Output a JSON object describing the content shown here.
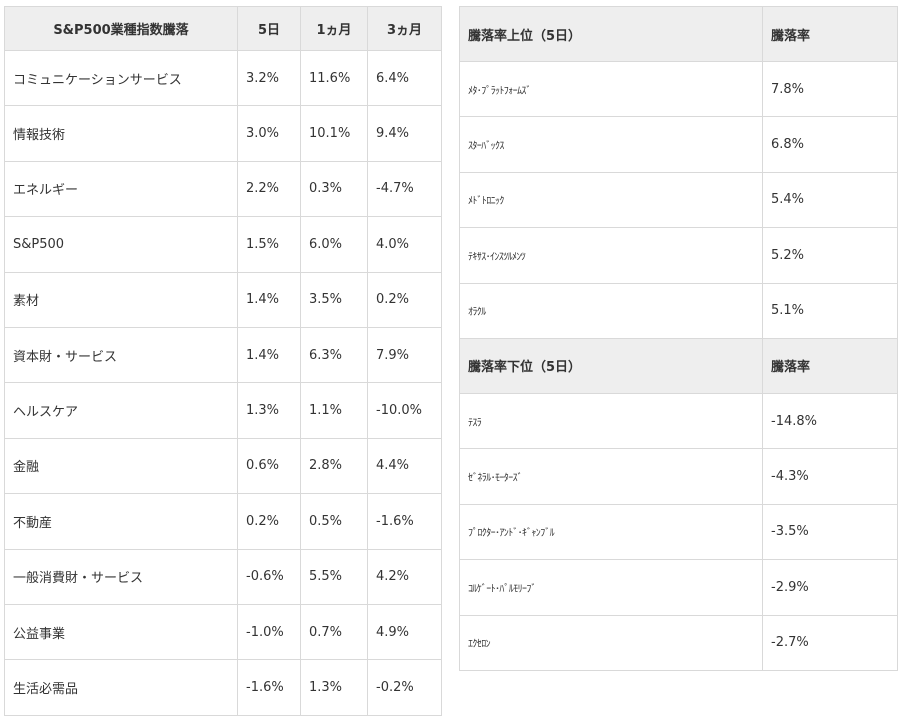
{
  "sector_table": {
    "headers": [
      "S&P500業種指数騰落",
      "5日",
      "1ヵ月",
      "3ヵ月"
    ],
    "rows": [
      [
        "コミュニケーションサービス",
        "3.2%",
        "11.6%",
        "6.4%"
      ],
      [
        "情報技術",
        "3.0%",
        "10.1%",
        "9.4%"
      ],
      [
        "エネルギー",
        "2.2%",
        "0.3%",
        "-4.7%"
      ],
      [
        "S&P500",
        "1.5%",
        "6.0%",
        "4.0%"
      ],
      [
        "素材",
        "1.4%",
        "3.5%",
        "0.2%"
      ],
      [
        "資本財・サービス",
        "1.4%",
        "6.3%",
        "7.9%"
      ],
      [
        "ヘルスケア",
        "1.3%",
        "1.1%",
        "-10.0%"
      ],
      [
        "金融",
        "0.6%",
        "2.8%",
        "4.4%"
      ],
      [
        "不動産",
        "0.2%",
        "0.5%",
        "-1.6%"
      ],
      [
        "一般消費財・サービス",
        "-0.6%",
        "5.5%",
        "4.2%"
      ],
      [
        "公益事業",
        "-1.0%",
        "0.7%",
        "4.9%"
      ],
      [
        "生活必需品",
        "-1.6%",
        "1.3%",
        "-0.2%"
      ]
    ]
  },
  "movers_table": {
    "top_header": [
      "騰落率上位（5日）",
      "騰落率"
    ],
    "top_rows": [
      [
        "ﾒﾀ･ﾌﾟﾗｯﾄﾌｫｰﾑｽﾞ",
        "7.8%"
      ],
      [
        "ｽﾀｰﾊﾞｯｸｽ",
        "6.8%"
      ],
      [
        "ﾒﾄﾞﾄﾛﾆｯｸ",
        "5.4%"
      ],
      [
        "ﾃｷｻｽ･ｲﾝｽﾂﾙﾒﾝﾂ",
        "5.2%"
      ],
      [
        "ｵﾗｸﾙ",
        "5.1%"
      ]
    ],
    "bottom_header": [
      "騰落率下位（5日）",
      "騰落率"
    ],
    "bottom_rows": [
      [
        "ﾃｽﾗ",
        "-14.8%"
      ],
      [
        "ｾﾞﾈﾗﾙ･ﾓｰﾀｰｽﾞ",
        "-4.3%"
      ],
      [
        "ﾌﾟﾛｸﾀｰ･ｱﾝﾄﾞ･ｷﾞｬﾝﾌﾞﾙ",
        "-3.5%"
      ],
      [
        "ｺﾙｹﾞｰﾄ･ﾊﾟﾙﾓﾘｰﾌﾞ",
        "-2.9%"
      ],
      [
        "ｴｸｾﾛﾝ",
        "-2.7%"
      ]
    ]
  }
}
